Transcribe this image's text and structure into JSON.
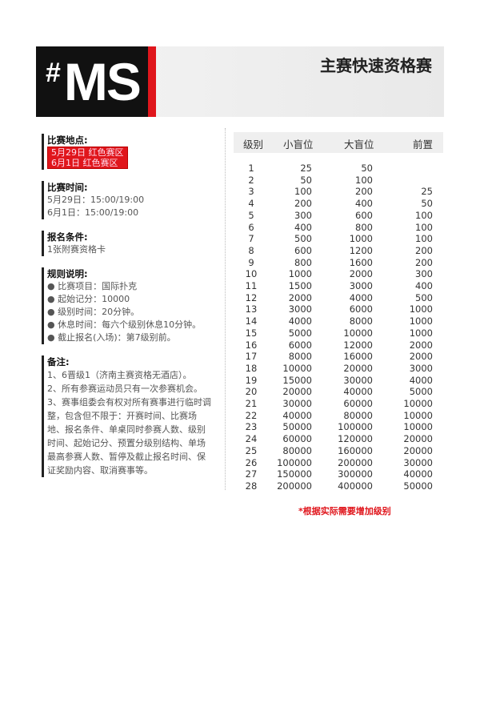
{
  "header": {
    "logo_text": "#MS",
    "title": "主赛快速资格赛"
  },
  "venue": {
    "label": "比赛地点:",
    "lines": [
      "5月29日 红色赛区",
      "6月1日 红色赛区"
    ]
  },
  "time": {
    "label": "比赛时间:",
    "lines": [
      "5月29日：15:00/19:00",
      "6月1日：15:00/19:00"
    ]
  },
  "entry": {
    "label": "报名条件:",
    "lines": [
      "1张附赛资格卡"
    ]
  },
  "rules": {
    "label": "规则说明:",
    "lines": [
      "● 比赛项目：国际扑克",
      "● 起始记分：10000",
      "● 级别时间：20分钟。",
      "● 休息时间：每六个级别休息10分钟。",
      "● 截止报名(入场)：第7级别前。"
    ]
  },
  "notes": {
    "label": "备注:",
    "lines": [
      "1、6晋级1（济南主赛资格无酒店）。",
      "2、所有参赛运动员只有一次参赛机会。",
      "3、赛事组委会有权对所有赛事进行临时调整，包含但不限于：开赛时间、比赛场地、报名条件、单桌同时参赛人数、级别时间、起始记分、预置分级别结构、单场最高参赛人数、暂停及截止报名时间、保证奖励内容、取消赛事等。"
    ]
  },
  "table": {
    "headers": [
      "级别",
      "小盲位",
      "大盲位",
      "前置"
    ],
    "rows": [
      [
        "1",
        "25",
        "50",
        ""
      ],
      [
        "2",
        "50",
        "100",
        ""
      ],
      [
        "3",
        "100",
        "200",
        "25"
      ],
      [
        "4",
        "200",
        "400",
        "50"
      ],
      [
        "5",
        "300",
        "600",
        "100"
      ],
      [
        "6",
        "400",
        "800",
        "100"
      ],
      [
        "7",
        "500",
        "1000",
        "100"
      ],
      [
        "8",
        "600",
        "1200",
        "200"
      ],
      [
        "9",
        "800",
        "1600",
        "200"
      ],
      [
        "10",
        "1000",
        "2000",
        "300"
      ],
      [
        "11",
        "1500",
        "3000",
        "400"
      ],
      [
        "12",
        "2000",
        "4000",
        "500"
      ],
      [
        "13",
        "3000",
        "6000",
        "1000"
      ],
      [
        "14",
        "4000",
        "8000",
        "1000"
      ],
      [
        "15",
        "5000",
        "10000",
        "1000"
      ],
      [
        "16",
        "6000",
        "12000",
        "2000"
      ],
      [
        "17",
        "8000",
        "16000",
        "2000"
      ],
      [
        "18",
        "10000",
        "20000",
        "3000"
      ],
      [
        "19",
        "15000",
        "30000",
        "4000"
      ],
      [
        "20",
        "20000",
        "40000",
        "5000"
      ],
      [
        "21",
        "30000",
        "60000",
        "10000"
      ],
      [
        "22",
        "40000",
        "80000",
        "10000"
      ],
      [
        "23",
        "50000",
        "100000",
        "10000"
      ],
      [
        "24",
        "60000",
        "120000",
        "20000"
      ],
      [
        "25",
        "80000",
        "160000",
        "20000"
      ],
      [
        "26",
        "100000",
        "200000",
        "30000"
      ],
      [
        "27",
        "150000",
        "300000",
        "40000"
      ],
      [
        "28",
        "200000",
        "400000",
        "50000"
      ]
    ]
  },
  "footnote": "*根据实际需要增加级别"
}
